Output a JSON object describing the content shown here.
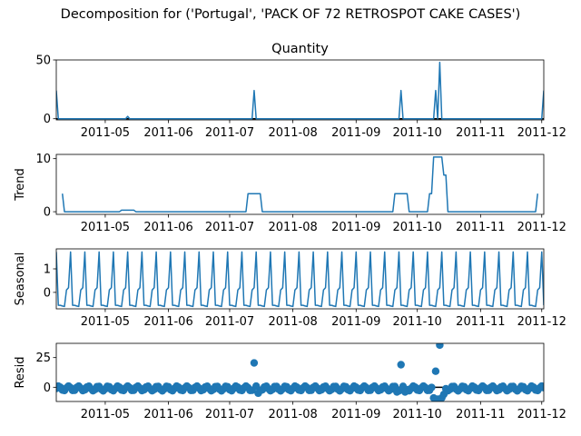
{
  "figure": {
    "suptitle": "Decomposition for ('Portugal', 'PACK OF 72 RETROSPOT CAKE CASES')"
  },
  "chart_data": [
    {
      "type": "line",
      "panel": "observed",
      "title": "Quantity",
      "ylabel": "",
      "ylim": [
        -1,
        50
      ],
      "yticks": [
        0,
        50
      ],
      "xlim": [
        "2011-04-07",
        "2011-12-02"
      ],
      "xticks": [
        "2011-05",
        "2011-06",
        "2011-07",
        "2011-08",
        "2011-09",
        "2011-10",
        "2011-11",
        "2011-12"
      ],
      "baseline": 0,
      "points": [
        {
          "x": "2011-04-07",
          "y": 24
        },
        {
          "x": "2011-04-08",
          "y": 0
        },
        {
          "x": "2011-05-11",
          "y": 0
        },
        {
          "x": "2011-05-12",
          "y": 2
        },
        {
          "x": "2011-05-13",
          "y": 0
        },
        {
          "x": "2011-07-12",
          "y": 0
        },
        {
          "x": "2011-07-13",
          "y": 24
        },
        {
          "x": "2011-07-14",
          "y": 0
        },
        {
          "x": "2011-09-22",
          "y": 0
        },
        {
          "x": "2011-09-23",
          "y": 24
        },
        {
          "x": "2011-09-24",
          "y": 0
        },
        {
          "x": "2011-10-09",
          "y": 0
        },
        {
          "x": "2011-10-10",
          "y": 24
        },
        {
          "x": "2011-10-11",
          "y": 0
        },
        {
          "x": "2011-10-12",
          "y": 48
        },
        {
          "x": "2011-10-13",
          "y": 0
        },
        {
          "x": "2011-12-01",
          "y": 0
        },
        {
          "x": "2011-12-02",
          "y": 24
        }
      ],
      "color": "#1f77b4"
    },
    {
      "type": "line",
      "panel": "trend",
      "title": "",
      "ylabel": "Trend",
      "ylim": [
        -0.5,
        10.8
      ],
      "yticks": [
        0,
        10
      ],
      "xlim": [
        "2011-04-07",
        "2011-12-02"
      ],
      "xticks": [
        "2011-05",
        "2011-06",
        "2011-07",
        "2011-08",
        "2011-09",
        "2011-10",
        "2011-11",
        "2011-12"
      ],
      "points": [
        {
          "x": "2011-04-10",
          "y": 3.4
        },
        {
          "x": "2011-04-11",
          "y": 0
        },
        {
          "x": "2011-05-08",
          "y": 0
        },
        {
          "x": "2011-05-09",
          "y": 0.3
        },
        {
          "x": "2011-05-15",
          "y": 0.3
        },
        {
          "x": "2011-05-16",
          "y": 0
        },
        {
          "x": "2011-07-09",
          "y": 0
        },
        {
          "x": "2011-07-10",
          "y": 3.4
        },
        {
          "x": "2011-07-16",
          "y": 3.4
        },
        {
          "x": "2011-07-17",
          "y": 0
        },
        {
          "x": "2011-09-19",
          "y": 0
        },
        {
          "x": "2011-09-20",
          "y": 3.4
        },
        {
          "x": "2011-09-26",
          "y": 3.4
        },
        {
          "x": "2011-09-27",
          "y": 0
        },
        {
          "x": "2011-10-06",
          "y": 0
        },
        {
          "x": "2011-10-07",
          "y": 3.4
        },
        {
          "x": "2011-10-08",
          "y": 3.4
        },
        {
          "x": "2011-10-09",
          "y": 10.3
        },
        {
          "x": "2011-10-13",
          "y": 10.3
        },
        {
          "x": "2011-10-14",
          "y": 6.9
        },
        {
          "x": "2011-10-15",
          "y": 6.9
        },
        {
          "x": "2011-10-16",
          "y": 0
        },
        {
          "x": "2011-11-28",
          "y": 0
        },
        {
          "x": "2011-11-29",
          "y": 3.4
        }
      ],
      "color": "#1f77b4"
    },
    {
      "type": "line",
      "panel": "seasonal",
      "title": "",
      "ylabel": "Seasonal",
      "ylim": [
        -0.7,
        1.85
      ],
      "yticks": [
        0,
        1
      ],
      "xlim": [
        "2011-04-07",
        "2011-12-02"
      ],
      "xticks": [
        "2011-05",
        "2011-06",
        "2011-07",
        "2011-08",
        "2011-09",
        "2011-10",
        "2011-11",
        "2011-12"
      ],
      "period_days": 7,
      "weekly_pattern": [
        1.72,
        -0.55,
        -0.55,
        -0.58,
        -0.6,
        0.1,
        0.2
      ],
      "color": "#1f77b4"
    },
    {
      "type": "scatter",
      "panel": "resid",
      "title": "",
      "ylabel": "Resid",
      "ylim": [
        -12,
        37
      ],
      "yticks": [
        0,
        25
      ],
      "xlim": [
        "2011-04-07",
        "2011-12-02"
      ],
      "xticks": [
        "2011-05",
        "2011-06",
        "2011-07",
        "2011-08",
        "2011-09",
        "2011-10",
        "2011-11",
        "2011-12"
      ],
      "baseline": 0,
      "background_resid_range": [
        -3,
        1
      ],
      "outliers": [
        {
          "x": "2011-07-13",
          "y": 20.5
        },
        {
          "x": "2011-09-23",
          "y": 19
        },
        {
          "x": "2011-10-10",
          "y": 13.5
        },
        {
          "x": "2011-10-12",
          "y": 35.5
        },
        {
          "x": "2011-10-09",
          "y": -9
        },
        {
          "x": "2011-10-11",
          "y": -10
        },
        {
          "x": "2011-10-13",
          "y": -9
        },
        {
          "x": "2011-10-14",
          "y": -6
        },
        {
          "x": "2011-07-15",
          "y": -5
        },
        {
          "x": "2011-09-21",
          "y": -4
        },
        {
          "x": "2011-09-25",
          "y": -4
        }
      ],
      "color": "#1f77b4"
    }
  ]
}
